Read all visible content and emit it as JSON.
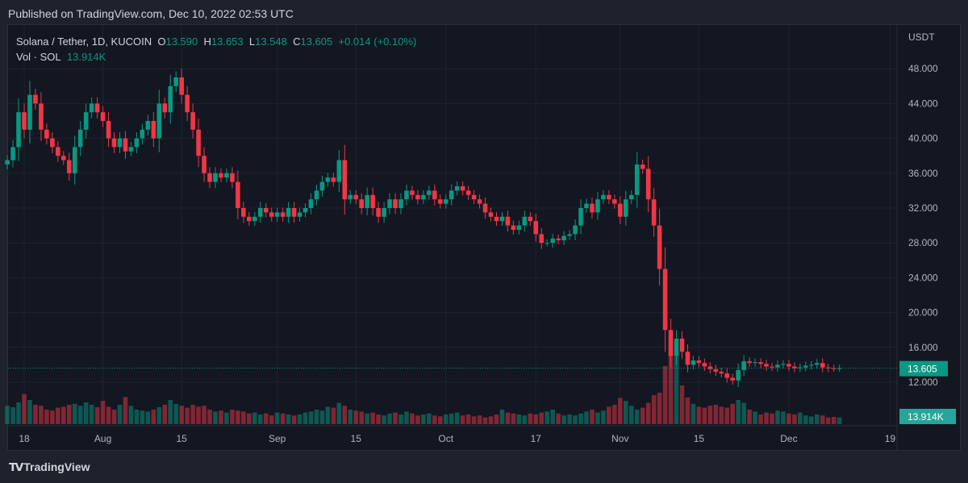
{
  "header": {
    "published": "Published on TradingView.com, Dec 10, 2022 02:53 UTC"
  },
  "legend": {
    "symbol": "Solana / Tether, 1D, KUCOIN",
    "o_label": "O",
    "o": "13.590",
    "h_label": "H",
    "h": "13.653",
    "l_label": "L",
    "l": "13.548",
    "c_label": "C",
    "c": "13.605",
    "change": "+0.014 (+0.10%)",
    "vol_label": "Vol · SOL",
    "vol": "13.914K"
  },
  "footer": {
    "brand": "TradingView"
  },
  "colors": {
    "up": "#089981",
    "down": "#f23645",
    "background": "#131722"
  },
  "chart_data": {
    "type": "candlestick",
    "currency_label": "USDT",
    "start_date": "2022-07-15",
    "ylim": [
      10,
      50
    ],
    "y_ticks": [
      "12.000",
      "16.000",
      "20.000",
      "24.000",
      "28.000",
      "32.000",
      "36.000",
      "40.000",
      "44.000",
      "48.000"
    ],
    "x_ticks": [
      "18",
      "Aug",
      "15",
      "Sep",
      "15",
      "Oct",
      "17",
      "Nov",
      "15",
      "Dec",
      "19"
    ],
    "last_price": "13.605",
    "last_volume": "13.914K",
    "close": [
      37.5,
      39,
      43,
      41,
      45,
      44,
      41,
      40,
      39,
      38,
      37.5,
      36,
      39,
      41,
      43,
      44,
      43,
      42,
      40,
      39,
      40,
      38.5,
      39,
      40,
      41,
      42,
      40,
      44,
      43,
      46,
      47,
      45,
      43,
      41,
      38,
      36,
      35,
      36,
      35.5,
      36,
      35,
      32,
      31,
      30.5,
      31,
      32,
      31.5,
      31,
      31.5,
      31,
      32,
      31,
      31.5,
      32,
      33,
      34,
      35,
      35.5,
      35,
      37.5,
      33,
      33.5,
      33,
      32,
      33.5,
      32,
      31,
      32,
      33,
      32,
      33,
      34,
      33.5,
      33,
      33.5,
      34,
      33,
      32.5,
      33,
      34,
      34.5,
      34,
      33.5,
      33,
      32.5,
      31.5,
      31,
      30.5,
      31,
      30,
      29.5,
      30,
      31,
      30.5,
      29,
      28,
      28,
      28.5,
      28.3,
      28.8,
      29,
      30,
      32,
      32.5,
      31.5,
      33,
      33.5,
      33,
      32.5,
      31,
      33,
      33.5,
      37,
      36.5,
      33,
      30,
      25,
      18,
      15,
      17,
      15.5,
      14,
      14.5,
      14.2,
      13.8,
      13.5,
      13.2,
      13,
      12.5,
      12.2,
      13.4,
      14.4,
      14.2,
      14.3,
      14.1,
      13.8,
      13.7,
      14,
      14.1,
      13.8,
      13.6,
      13.7,
      13.9,
      14,
      14.2,
      13.7,
      13.6,
      13.59,
      13.605
    ],
    "volume_k": [
      38,
      35,
      45,
      62,
      50,
      40,
      38,
      30,
      28,
      34,
      36,
      40,
      42,
      38,
      45,
      40,
      35,
      48,
      36,
      30,
      40,
      56,
      38,
      30,
      28,
      26,
      30,
      35,
      40,
      50,
      42,
      38,
      34,
      40,
      36,
      38,
      30,
      26,
      28,
      24,
      30,
      28,
      26,
      22,
      24,
      20,
      22,
      18,
      24,
      22,
      20,
      18,
      20,
      24,
      26,
      30,
      28,
      36,
      34,
      44,
      38,
      30,
      28,
      26,
      22,
      24,
      20,
      18,
      22,
      24,
      20,
      26,
      22,
      18,
      20,
      22,
      18,
      16,
      20,
      22,
      24,
      18,
      20,
      16,
      18,
      14,
      16,
      20,
      30,
      24,
      22,
      20,
      18,
      22,
      20,
      24,
      26,
      30,
      22,
      18,
      20,
      18,
      22,
      26,
      30,
      24,
      28,
      36,
      40,
      54,
      48,
      38,
      30,
      34,
      44,
      60,
      65,
      120,
      180,
      140,
      80,
      55,
      42,
      36,
      34,
      38,
      40,
      36,
      34,
      42,
      50,
      44,
      30,
      26,
      20,
      24,
      22,
      28,
      26,
      22,
      20,
      24,
      18,
      16,
      20,
      18,
      14,
      15,
      13.914
    ]
  }
}
